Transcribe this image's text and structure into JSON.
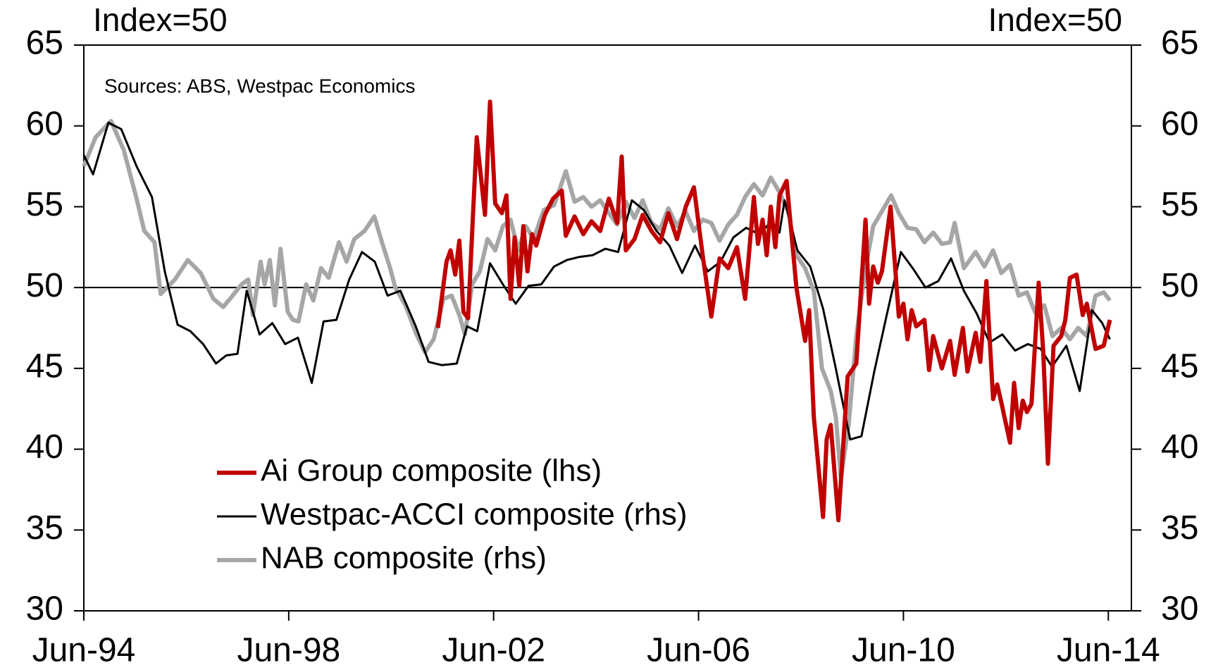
{
  "chart_data": {
    "type": "line",
    "y_label": "Index=50",
    "y2_label": "Index=50",
    "annotation": "Sources: ABS, Westpac Economics",
    "xlim": [
      1994.42,
      2014.87
    ],
    "xticks": [
      {
        "value": 1994.42,
        "label": "Jun-94"
      },
      {
        "value": 1998.42,
        "label": "Jun-98"
      },
      {
        "value": 2002.42,
        "label": "Jun-02"
      },
      {
        "value": 2006.42,
        "label": "Jun-06"
      },
      {
        "value": 2010.42,
        "label": "Jun-10"
      },
      {
        "value": 2014.42,
        "label": "Jun-14"
      }
    ],
    "ylim": [
      30,
      65
    ],
    "yticks": [
      30,
      35,
      40,
      45,
      50,
      55,
      60,
      65
    ],
    "y2lim": [
      30,
      65
    ],
    "y2ticks": [
      30,
      35,
      40,
      45,
      50,
      55,
      60,
      65
    ],
    "hline": 50,
    "grid": false,
    "legend_position": "lower left",
    "series": [
      {
        "name": "Ai Group composite (lhs)",
        "color": "#c00000",
        "axis": "y",
        "x": [
          2001.33,
          2001.5,
          2001.58,
          2001.67,
          2001.75,
          2001.83,
          2001.92,
          2002.09,
          2002.25,
          2002.35,
          2002.45,
          2002.58,
          2002.67,
          2002.75,
          2002.83,
          2002.92,
          2003.0,
          2003.08,
          2003.17,
          2003.25,
          2003.42,
          2003.58,
          2003.75,
          2003.83,
          2004.0,
          2004.17,
          2004.33,
          2004.5,
          2004.67,
          2004.83,
          2004.92,
          2005.0,
          2005.17,
          2005.33,
          2005.5,
          2005.67,
          2005.83,
          2006.0,
          2006.17,
          2006.33,
          2006.5,
          2006.67,
          2006.83,
          2007.0,
          2007.17,
          2007.33,
          2007.5,
          2007.58,
          2007.67,
          2007.75,
          2007.83,
          2007.92,
          2008.0,
          2008.14,
          2008.33,
          2008.5,
          2008.58,
          2008.67,
          2008.85,
          2008.92,
          2009.0,
          2009.15,
          2009.33,
          2009.5,
          2009.68,
          2009.75,
          2009.83,
          2009.92,
          2010.0,
          2010.17,
          2010.33,
          2010.42,
          2010.5,
          2010.58,
          2010.67,
          2010.83,
          2010.92,
          2011.0,
          2011.17,
          2011.33,
          2011.42,
          2011.58,
          2011.67,
          2011.75,
          2011.83,
          2011.92,
          2012.04,
          2012.17,
          2012.25,
          2012.33,
          2012.5,
          2012.58,
          2012.67,
          2012.75,
          2012.83,
          2012.92,
          2013.06,
          2013.15,
          2013.24,
          2013.35,
          2013.5,
          2013.58,
          2013.67,
          2013.8,
          2013.92,
          2014.0,
          2014.17,
          2014.33,
          2014.45
        ],
        "values": [
          47.5,
          51.6,
          52.3,
          50.8,
          52.9,
          48.5,
          48.1,
          59.3,
          54.5,
          61.5,
          55.2,
          54.6,
          55.7,
          49.3,
          53.1,
          50.1,
          53.8,
          51.0,
          53.3,
          52.6,
          54.5,
          55.5,
          56.0,
          53.2,
          54.4,
          53.3,
          54.1,
          53.5,
          55.5,
          54.0,
          58.1,
          52.3,
          53.0,
          54.5,
          53.5,
          52.8,
          54.6,
          53.0,
          55.0,
          56.2,
          52.0,
          48.2,
          51.8,
          51.2,
          52.5,
          49.3,
          55.6,
          52.7,
          54.2,
          52.0,
          55.0,
          52.5,
          55.7,
          56.6,
          50.0,
          46.7,
          48.6,
          42.0,
          35.8,
          40.6,
          41.5,
          35.6,
          44.5,
          45.3,
          54.2,
          49.0,
          51.3,
          50.3,
          51.0,
          55.0,
          48.2,
          49.0,
          46.8,
          48.6,
          47.6,
          48.0,
          44.9,
          47.0,
          45.0,
          46.7,
          44.6,
          47.5,
          44.8,
          46.0,
          47.2,
          45.4,
          50.4,
          43.1,
          44.0,
          42.9,
          40.4,
          44.1,
          41.3,
          43.0,
          42.3,
          42.8,
          50.3,
          46.0,
          39.1,
          46.4,
          47.0,
          48.0,
          50.6,
          50.8,
          48.3,
          49.0,
          46.2,
          46.4,
          48.0
        ]
      },
      {
        "name": "Westpac-ACCI composite (rhs)",
        "color": "#000000",
        "axis": "y2",
        "x": [
          1994.42,
          1994.6,
          1994.9,
          1995.15,
          1995.45,
          1995.75,
          1996.0,
          1996.25,
          1996.5,
          1996.75,
          1997.0,
          1997.2,
          1997.42,
          1997.6,
          1997.85,
          1998.1,
          1998.35,
          1998.6,
          1998.87,
          1999.1,
          1999.35,
          1999.6,
          1999.85,
          2000.1,
          2000.35,
          2000.6,
          2000.9,
          2001.15,
          2001.41,
          2001.7,
          2001.9,
          2002.1,
          2002.35,
          2002.6,
          2002.85,
          2003.1,
          2003.35,
          2003.6,
          2003.85,
          2004.1,
          2004.35,
          2004.6,
          2004.85,
          2005.12,
          2005.35,
          2005.6,
          2005.85,
          2006.1,
          2006.35,
          2006.6,
          2006.85,
          2007.1,
          2007.35,
          2007.6,
          2007.85,
          2008.0,
          2008.1,
          2008.35,
          2008.6,
          2008.85,
          2009.1,
          2009.38,
          2009.6,
          2009.85,
          2010.1,
          2010.37,
          2010.6,
          2010.85,
          2011.1,
          2011.35,
          2011.6,
          2011.85,
          2012.1,
          2012.35,
          2012.6,
          2012.85,
          2013.1,
          2013.32,
          2013.6,
          2013.86,
          2014.1,
          2014.3,
          2014.45
        ],
        "values": [
          58.2,
          57.0,
          60.2,
          59.8,
          57.5,
          55.6,
          51.0,
          47.7,
          47.3,
          46.5,
          45.3,
          45.8,
          45.9,
          49.8,
          47.1,
          47.8,
          46.5,
          46.9,
          44.1,
          47.9,
          48.0,
          50.5,
          52.2,
          51.6,
          49.5,
          49.8,
          47.6,
          45.4,
          45.2,
          45.3,
          47.6,
          47.3,
          51.5,
          50.2,
          49.0,
          50.1,
          50.2,
          51.3,
          51.7,
          51.9,
          52.0,
          52.4,
          52.2,
          55.4,
          54.8,
          53.5,
          52.6,
          50.9,
          52.6,
          51.0,
          51.6,
          53.1,
          53.7,
          53.3,
          54.1,
          53.4,
          55.4,
          52.3,
          51.3,
          48.7,
          45.0,
          40.6,
          40.8,
          44.8,
          48.4,
          52.2,
          51.2,
          50.0,
          50.4,
          51.8,
          49.8,
          48.4,
          46.6,
          47.1,
          46.1,
          46.5,
          46.2,
          45.1,
          46.4,
          43.6,
          48.6,
          47.8,
          46.8
        ]
      },
      {
        "name": "NAB composite (rhs)",
        "color": "#a6a6a6",
        "axis": "y2",
        "x": [
          1994.42,
          1994.65,
          1994.95,
          1995.2,
          1995.45,
          1995.6,
          1995.8,
          1995.92,
          1996.2,
          1996.45,
          1996.7,
          1996.95,
          1997.14,
          1997.3,
          1997.5,
          1997.63,
          1997.72,
          1997.87,
          1997.95,
          1998.05,
          1998.15,
          1998.26,
          1998.4,
          1998.5,
          1998.61,
          1998.76,
          1998.9,
          1999.05,
          1999.2,
          1999.4,
          1999.55,
          1999.7,
          1999.9,
          2000.09,
          2000.25,
          2000.4,
          2000.5,
          2000.7,
          2000.9,
          2001.08,
          2001.25,
          2001.44,
          2001.6,
          2001.75,
          2001.86,
          2002.0,
          2002.15,
          2002.3,
          2002.45,
          2002.6,
          2002.75,
          2002.9,
          2003.05,
          2003.2,
          2003.4,
          2003.6,
          2003.83,
          2004.0,
          2004.17,
          2004.33,
          2004.5,
          2004.67,
          2004.83,
          2005.0,
          2005.17,
          2005.33,
          2005.5,
          2005.67,
          2005.83,
          2006.0,
          2006.17,
          2006.33,
          2006.5,
          2006.67,
          2006.83,
          2007.0,
          2007.17,
          2007.33,
          2007.5,
          2007.67,
          2007.83,
          2008.0,
          2008.17,
          2008.33,
          2008.5,
          2008.67,
          2008.83,
          2009.0,
          2009.1,
          2009.2,
          2009.35,
          2009.5,
          2009.67,
          2009.83,
          2010.18,
          2010.33,
          2010.5,
          2010.67,
          2010.83,
          2011.0,
          2011.17,
          2011.33,
          2011.42,
          2011.6,
          2011.83,
          2012.0,
          2012.17,
          2012.33,
          2012.5,
          2012.67,
          2012.83,
          2013.0,
          2013.17,
          2013.33,
          2013.5,
          2013.67,
          2013.83,
          2014.0,
          2014.17,
          2014.33,
          2014.45
        ],
        "values": [
          57.5,
          59.3,
          60.3,
          58.5,
          55.5,
          53.5,
          52.8,
          49.6,
          50.5,
          51.7,
          50.9,
          49.3,
          48.8,
          49.4,
          50.2,
          50.5,
          48.3,
          51.6,
          50.2,
          51.7,
          48.9,
          52.4,
          48.5,
          48.0,
          47.9,
          50.2,
          49.2,
          51.2,
          50.6,
          52.8,
          51.6,
          53.0,
          53.5,
          54.4,
          52.7,
          51.2,
          50.0,
          48.9,
          47.2,
          46.0,
          46.8,
          49.3,
          49.5,
          48.3,
          47.1,
          50.2,
          51.0,
          53.0,
          52.3,
          53.8,
          54.2,
          52.3,
          53.8,
          53.0,
          54.8,
          55.1,
          57.2,
          55.3,
          55.6,
          55.0,
          55.4,
          54.6,
          53.9,
          55.3,
          54.3,
          55.4,
          54.0,
          53.6,
          54.9,
          53.8,
          54.7,
          53.5,
          54.2,
          54.0,
          52.9,
          53.9,
          54.5,
          55.6,
          56.4,
          55.7,
          56.8,
          55.9,
          54.7,
          52.0,
          51.2,
          49.8,
          45.0,
          43.6,
          42.0,
          38.2,
          41.5,
          47.0,
          51.0,
          53.8,
          55.7,
          54.6,
          53.7,
          53.6,
          52.8,
          53.4,
          52.7,
          52.8,
          54.0,
          51.2,
          52.2,
          51.3,
          52.3,
          50.9,
          51.4,
          49.5,
          49.7,
          48.4,
          48.9,
          47.0,
          47.5,
          46.8,
          47.5,
          47.0,
          49.5,
          49.7,
          49.2
        ]
      }
    ]
  }
}
